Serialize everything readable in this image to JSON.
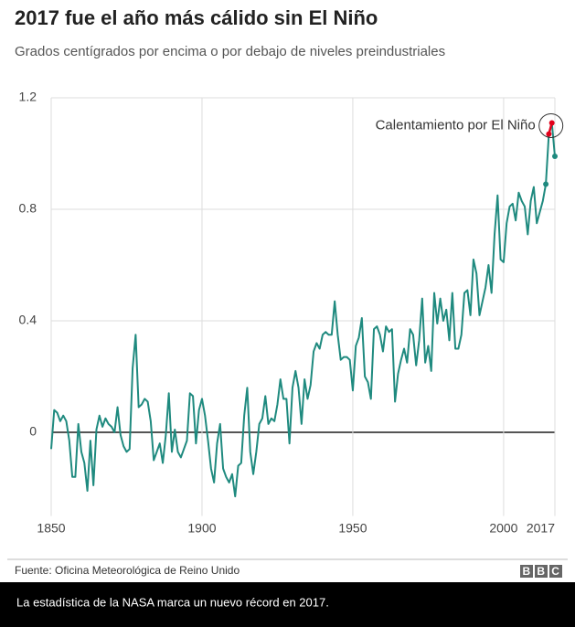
{
  "chart_data": {
    "type": "line",
    "title": "2017 fue el año más cálido sin El Niño",
    "subtitle": "Grados centígrados por encima o por debajo de niveles preindustriales",
    "annotation": "Calentamiento por El Niño",
    "x": [
      1850,
      1851,
      1852,
      1853,
      1854,
      1855,
      1856,
      1857,
      1858,
      1859,
      1860,
      1861,
      1862,
      1863,
      1864,
      1865,
      1866,
      1867,
      1868,
      1869,
      1870,
      1871,
      1872,
      1873,
      1874,
      1875,
      1876,
      1877,
      1878,
      1879,
      1880,
      1881,
      1882,
      1883,
      1884,
      1885,
      1886,
      1887,
      1888,
      1889,
      1890,
      1891,
      1892,
      1893,
      1894,
      1895,
      1896,
      1897,
      1898,
      1899,
      1900,
      1901,
      1902,
      1903,
      1904,
      1905,
      1906,
      1907,
      1908,
      1909,
      1910,
      1911,
      1912,
      1913,
      1914,
      1915,
      1916,
      1917,
      1918,
      1919,
      1920,
      1921,
      1922,
      1923,
      1924,
      1925,
      1926,
      1927,
      1928,
      1929,
      1930,
      1931,
      1932,
      1933,
      1934,
      1935,
      1936,
      1937,
      1938,
      1939,
      1940,
      1941,
      1942,
      1943,
      1944,
      1945,
      1946,
      1947,
      1948,
      1949,
      1950,
      1951,
      1952,
      1953,
      1954,
      1955,
      1956,
      1957,
      1958,
      1959,
      1960,
      1961,
      1962,
      1963,
      1964,
      1965,
      1966,
      1967,
      1968,
      1969,
      1970,
      1971,
      1972,
      1973,
      1974,
      1975,
      1976,
      1977,
      1978,
      1979,
      1980,
      1981,
      1982,
      1983,
      1984,
      1985,
      1986,
      1987,
      1988,
      1989,
      1990,
      1991,
      1992,
      1993,
      1994,
      1995,
      1996,
      1997,
      1998,
      1999,
      2000,
      2001,
      2002,
      2003,
      2004,
      2005,
      2006,
      2007,
      2008,
      2009,
      2010,
      2011,
      2012,
      2013,
      2014,
      2015,
      2016,
      2017
    ],
    "series": [
      {
        "color": "#1f8a7f",
        "highlight_color": "#e2001a",
        "values": [
          -0.06,
          0.08,
          0.07,
          0.04,
          0.06,
          0.04,
          -0.03,
          -0.16,
          -0.16,
          0.03,
          -0.07,
          -0.11,
          -0.21,
          -0.03,
          -0.19,
          0.01,
          0.06,
          0.02,
          0.05,
          0.03,
          0.02,
          0.0,
          0.09,
          -0.01,
          -0.05,
          -0.07,
          -0.06,
          0.23,
          0.35,
          0.09,
          0.1,
          0.12,
          0.11,
          0.04,
          -0.1,
          -0.07,
          -0.04,
          -0.11,
          -0.01,
          0.14,
          -0.07,
          0.01,
          -0.07,
          -0.09,
          -0.06,
          -0.03,
          0.14,
          0.13,
          -0.04,
          0.08,
          0.12,
          0.06,
          -0.03,
          -0.13,
          -0.18,
          -0.04,
          0.03,
          -0.13,
          -0.16,
          -0.18,
          -0.15,
          -0.23,
          -0.12,
          -0.11,
          0.06,
          0.16,
          -0.07,
          -0.15,
          -0.07,
          0.03,
          0.05,
          0.13,
          0.03,
          0.05,
          0.04,
          0.1,
          0.19,
          0.12,
          0.12,
          -0.04,
          0.16,
          0.22,
          0.16,
          0.03,
          0.19,
          0.12,
          0.17,
          0.29,
          0.32,
          0.3,
          0.35,
          0.36,
          0.35,
          0.35,
          0.47,
          0.35,
          0.26,
          0.27,
          0.27,
          0.26,
          0.15,
          0.31,
          0.34,
          0.41,
          0.2,
          0.18,
          0.12,
          0.37,
          0.38,
          0.35,
          0.29,
          0.38,
          0.36,
          0.37,
          0.11,
          0.21,
          0.26,
          0.3,
          0.25,
          0.37,
          0.35,
          0.24,
          0.33,
          0.48,
          0.25,
          0.31,
          0.22,
          0.5,
          0.39,
          0.48,
          0.4,
          0.44,
          0.33,
          0.5,
          0.3,
          0.3,
          0.35,
          0.5,
          0.51,
          0.42,
          0.62,
          0.57,
          0.42,
          0.47,
          0.52,
          0.6,
          0.5,
          0.71,
          0.85,
          0.62,
          0.61,
          0.75,
          0.81,
          0.82,
          0.76,
          0.86,
          0.83,
          0.81,
          0.71,
          0.83,
          0.88,
          0.75,
          0.79,
          0.83,
          0.89,
          1.07,
          1.11,
          0.99
        ]
      }
    ],
    "xlim": [
      1850,
      2017
    ],
    "xticks": [
      1850,
      1900,
      1950,
      2000,
      2017
    ],
    "ylim": [
      -0.3,
      1.2
    ],
    "yticks": [
      0,
      0.4,
      0.8,
      1.2
    ],
    "grid": true
  },
  "source": "Fuente: Oficina Meteorológica de Reino Unido",
  "logo": "BBC",
  "caption": "La estadística de la NASA marca un nuevo récord en 2017."
}
